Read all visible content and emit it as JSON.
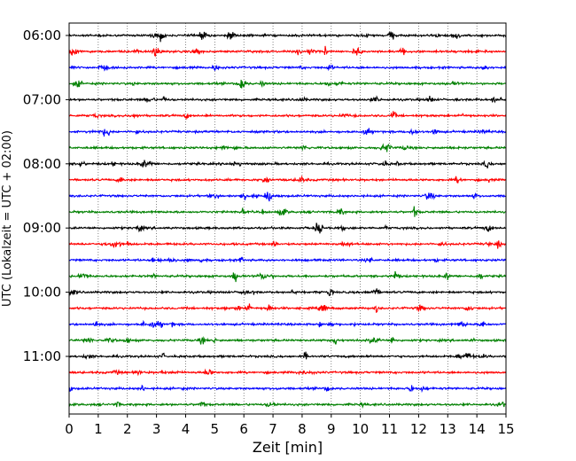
{
  "chart_data": {
    "type": "line",
    "title": "",
    "xlabel": "Zeit  [min]",
    "ylabel": "UTC (Lokalzeit = UTC + 02:00)",
    "xlim": [
      0,
      15
    ],
    "x_ticks": [
      "0",
      "1",
      "2",
      "3",
      "4",
      "5",
      "6",
      "7",
      "8",
      "9",
      "10",
      "11",
      "12",
      "13",
      "14",
      "15"
    ],
    "y_tick_labels": [
      "06:00",
      "07:00",
      "08:00",
      "09:00",
      "10:00",
      "11:00"
    ],
    "grid": "vertical dotted at each minute",
    "trace_interval_minutes": 15,
    "first_trace_utc": "06:00",
    "colors": [
      "#000000",
      "#ff0000",
      "#0000ff",
      "#008000"
    ],
    "traces": [
      {
        "start": "06:00",
        "color": "#000000"
      },
      {
        "start": "06:15",
        "color": "#ff0000"
      },
      {
        "start": "06:30",
        "color": "#0000ff"
      },
      {
        "start": "06:45",
        "color": "#008000"
      },
      {
        "start": "07:00",
        "color": "#000000"
      },
      {
        "start": "07:15",
        "color": "#ff0000"
      },
      {
        "start": "07:30",
        "color": "#0000ff"
      },
      {
        "start": "07:45",
        "color": "#008000"
      },
      {
        "start": "08:00",
        "color": "#000000"
      },
      {
        "start": "08:15",
        "color": "#ff0000"
      },
      {
        "start": "08:30",
        "color": "#0000ff"
      },
      {
        "start": "08:45",
        "color": "#008000"
      },
      {
        "start": "09:00",
        "color": "#000000"
      },
      {
        "start": "09:15",
        "color": "#ff0000"
      },
      {
        "start": "09:30",
        "color": "#0000ff"
      },
      {
        "start": "09:45",
        "color": "#008000"
      },
      {
        "start": "10:00",
        "color": "#000000"
      },
      {
        "start": "10:15",
        "color": "#ff0000"
      },
      {
        "start": "10:30",
        "color": "#0000ff"
      },
      {
        "start": "10:45",
        "color": "#008000"
      },
      {
        "start": "11:00",
        "color": "#000000"
      },
      {
        "start": "11:15",
        "color": "#ff0000"
      },
      {
        "start": "11:30",
        "color": "#0000ff"
      },
      {
        "start": "11:45",
        "color": "#008000"
      }
    ]
  }
}
